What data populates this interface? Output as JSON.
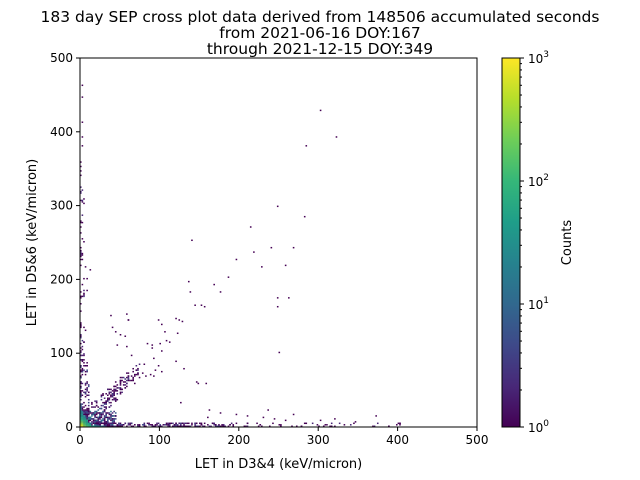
{
  "chart_data": {
    "type": "heatmap",
    "title_lines": [
      "183 day SEP cross plot data derived from 148506 accumulated seconds",
      "from 2021-06-16 DOY:167",
      "through 2021-12-15 DOY:349"
    ],
    "xlabel": "LET in D3&4 (keV/micron)",
    "ylabel": "LET in D5&6 (keV/micron)",
    "xlim": [
      0,
      500
    ],
    "ylim": [
      0,
      500
    ],
    "x_ticks": [
      0,
      100,
      200,
      300,
      400,
      500
    ],
    "y_ticks": [
      0,
      100,
      200,
      300,
      400,
      500
    ],
    "colorbar": {
      "label": "Counts",
      "scale": "log",
      "range": [
        1,
        1000
      ],
      "colormap": "viridis",
      "ticks": [
        {
          "value": 1,
          "base": "10",
          "exp": "0"
        },
        {
          "value": 10,
          "base": "10",
          "exp": "1"
        },
        {
          "value": 100,
          "base": "10",
          "exp": "2"
        },
        {
          "value": 1000,
          "base": "10",
          "exp": "3"
        }
      ]
    },
    "bin_size": 2,
    "cells": [
      [
        0,
        0,
        1000
      ],
      [
        2,
        0,
        600
      ],
      [
        4,
        0,
        350
      ],
      [
        6,
        0,
        220
      ],
      [
        8,
        0,
        150
      ],
      [
        10,
        0,
        110
      ],
      [
        12,
        0,
        80
      ],
      [
        14,
        0,
        60
      ],
      [
        16,
        0,
        45
      ],
      [
        18,
        0,
        35
      ],
      [
        20,
        0,
        28
      ],
      [
        0,
        2,
        550
      ],
      [
        2,
        2,
        400
      ],
      [
        4,
        2,
        200
      ],
      [
        6,
        2,
        120
      ],
      [
        8,
        2,
        80
      ],
      [
        10,
        2,
        60
      ],
      [
        12,
        2,
        45
      ],
      [
        0,
        4,
        300
      ],
      [
        2,
        4,
        250
      ],
      [
        4,
        4,
        150
      ],
      [
        6,
        4,
        90
      ],
      [
        8,
        4,
        60
      ],
      [
        10,
        4,
        45
      ],
      [
        0,
        6,
        180
      ],
      [
        2,
        6,
        160
      ],
      [
        4,
        6,
        110
      ],
      [
        6,
        6,
        70
      ],
      [
        8,
        6,
        50
      ],
      [
        0,
        8,
        120
      ],
      [
        2,
        8,
        100
      ],
      [
        4,
        8,
        80
      ],
      [
        6,
        8,
        55
      ],
      [
        8,
        8,
        40
      ],
      [
        0,
        10,
        80
      ],
      [
        2,
        10,
        70
      ],
      [
        4,
        10,
        55
      ],
      [
        6,
        10,
        40
      ],
      [
        10,
        10,
        30
      ],
      [
        0,
        12,
        60
      ],
      [
        2,
        12,
        50
      ],
      [
        4,
        12,
        40
      ],
      [
        12,
        12,
        25
      ],
      [
        0,
        14,
        45
      ],
      [
        2,
        14,
        40
      ],
      [
        4,
        14,
        30
      ],
      [
        14,
        14,
        20
      ],
      [
        0,
        16,
        35
      ],
      [
        2,
        16,
        30
      ],
      [
        16,
        16,
        15
      ],
      [
        0,
        18,
        28
      ],
      [
        2,
        18,
        22
      ],
      [
        18,
        18,
        12
      ],
      [
        0,
        20,
        20
      ],
      [
        2,
        20,
        16
      ],
      [
        20,
        20,
        10
      ],
      [
        22,
        0,
        22
      ],
      [
        24,
        0,
        18
      ],
      [
        26,
        0,
        15
      ],
      [
        28,
        0,
        12
      ],
      [
        30,
        0,
        10
      ],
      [
        0,
        22,
        16
      ],
      [
        0,
        24,
        13
      ],
      [
        0,
        26,
        10
      ],
      [
        0,
        28,
        8
      ],
      [
        0,
        30,
        7
      ],
      [
        22,
        22,
        8
      ],
      [
        24,
        24,
        6
      ],
      [
        26,
        24,
        5
      ],
      [
        28,
        28,
        4
      ],
      [
        30,
        30,
        4
      ],
      [
        32,
        30,
        3
      ],
      [
        34,
        34,
        3
      ],
      [
        36,
        36,
        2
      ]
    ],
    "clusters": [
      {
        "x": [
          0,
          45
        ],
        "y": [
          0,
          22
        ],
        "n": 380,
        "c": [
          1,
          12
        ]
      },
      {
        "x": [
          0,
          12
        ],
        "y": [
          0,
          90
        ],
        "n": 160,
        "c": [
          1,
          6
        ]
      },
      {
        "x": [
          0,
          5
        ],
        "y": [
          90,
          330
        ],
        "n": 70,
        "c": [
          1,
          3
        ]
      },
      {
        "x": [
          0,
          4
        ],
        "y": [
          330,
          500
        ],
        "n": 9,
        "c": [
          1,
          1
        ]
      },
      {
        "x": [
          20,
          180
        ],
        "y": [
          0,
          6
        ],
        "n": 240,
        "c": [
          1,
          4
        ]
      },
      {
        "x": [
          180,
          420
        ],
        "y": [
          0,
          5
        ],
        "n": 55,
        "c": [
          1,
          2
        ]
      },
      {
        "x": [
          10,
          75
        ],
        "y": [
          20,
          80
        ],
        "n": 110,
        "c": [
          1,
          3
        ],
        "diag": true
      },
      {
        "x": [
          25,
          60
        ],
        "y": [
          20,
          60
        ],
        "n": 45,
        "c": [
          1,
          2
        ],
        "diag": true
      }
    ],
    "sparse_points": [
      [
        302,
        428
      ],
      [
        322,
        392
      ],
      [
        285,
        380
      ],
      [
        248,
        298
      ],
      [
        282,
        284
      ],
      [
        214,
        270
      ],
      [
        240,
        243
      ],
      [
        268,
        242
      ],
      [
        140,
        253
      ],
      [
        218,
        236
      ],
      [
        196,
        226
      ],
      [
        228,
        216
      ],
      [
        258,
        218
      ],
      [
        186,
        203
      ],
      [
        136,
        196
      ],
      [
        168,
        193
      ],
      [
        138,
        183
      ],
      [
        176,
        183
      ],
      [
        248,
        174
      ],
      [
        262,
        174
      ],
      [
        145,
        165
      ],
      [
        152,
        164
      ],
      [
        156,
        163
      ],
      [
        248,
        162
      ],
      [
        58,
        153
      ],
      [
        60,
        145
      ],
      [
        98,
        145
      ],
      [
        120,
        146
      ],
      [
        125,
        145
      ],
      [
        60,
        145
      ],
      [
        128,
        143
      ],
      [
        102,
        138
      ],
      [
        107,
        128
      ],
      [
        122,
        127
      ],
      [
        38,
        150
      ],
      [
        40,
        135
      ],
      [
        44,
        128
      ],
      [
        50,
        125
      ],
      [
        56,
        122
      ],
      [
        108,
        116
      ],
      [
        112,
        115
      ],
      [
        84,
        113
      ],
      [
        90,
        111
      ],
      [
        100,
        113
      ],
      [
        46,
        110
      ],
      [
        58,
        108
      ],
      [
        90,
        106
      ],
      [
        102,
        103
      ],
      [
        250,
        100
      ],
      [
        64,
        96
      ],
      [
        92,
        93
      ],
      [
        120,
        88
      ],
      [
        80,
        84
      ],
      [
        98,
        82
      ],
      [
        94,
        77
      ],
      [
        130,
        78
      ],
      [
        102,
        74
      ],
      [
        78,
        72
      ],
      [
        82,
        69
      ],
      [
        70,
        70
      ],
      [
        74,
        66
      ],
      [
        66,
        62
      ],
      [
        68,
        59
      ],
      [
        88,
        70
      ],
      [
        92,
        68
      ],
      [
        146,
        60
      ],
      [
        148,
        58
      ],
      [
        158,
        58
      ],
      [
        12,
        212
      ],
      [
        6,
        216
      ],
      [
        8,
        200
      ],
      [
        8,
        185
      ],
      [
        4,
        180
      ],
      [
        6,
        130
      ],
      [
        4,
        115
      ],
      [
        126,
        32
      ],
      [
        162,
        23
      ],
      [
        176,
        18
      ],
      [
        196,
        16
      ],
      [
        210,
        14
      ],
      [
        230,
        12
      ],
      [
        244,
        10
      ],
      [
        258,
        8
      ],
      [
        302,
        8
      ],
      [
        372,
        14
      ],
      [
        320,
        10
      ],
      [
        346,
        6
      ],
      [
        400,
        4
      ],
      [
        236,
        22
      ],
      [
        160,
        12
      ],
      [
        268,
        16
      ]
    ]
  }
}
